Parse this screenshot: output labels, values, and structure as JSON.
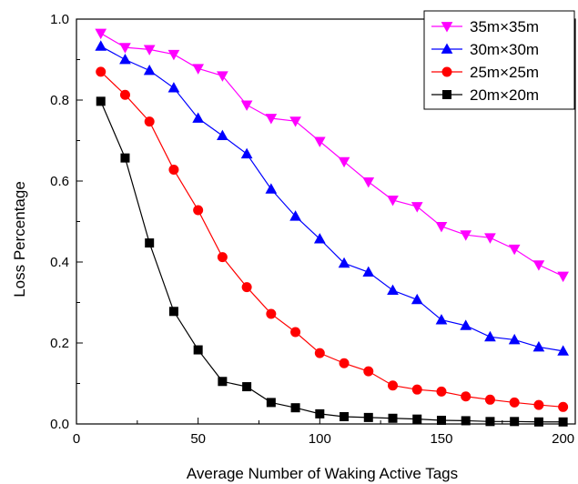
{
  "chart_data": {
    "type": "line",
    "title": "",
    "xlabel": "Average Number of Waking Active Tags",
    "ylabel": "Loss Percentage",
    "xlim": [
      0,
      205
    ],
    "ylim": [
      0,
      1.0
    ],
    "xticks": [
      0,
      50,
      100,
      150,
      200
    ],
    "yticks": [
      0.0,
      0.2,
      0.4,
      0.6,
      0.8,
      1.0
    ],
    "ytick_labels": [
      "0.0",
      "0.2",
      "0.4",
      "0.6",
      "0.8",
      "1.0"
    ],
    "grid": false,
    "legend_position": "top-right",
    "x": [
      10,
      20,
      30,
      40,
      50,
      60,
      70,
      80,
      90,
      100,
      110,
      120,
      130,
      140,
      150,
      160,
      170,
      180,
      190,
      200
    ],
    "series": [
      {
        "name": "35m×35m",
        "color": "#ff00ff",
        "marker": "triangle-down",
        "values": [
          0.965,
          0.93,
          0.925,
          0.913,
          0.878,
          0.86,
          0.788,
          0.755,
          0.748,
          0.698,
          0.648,
          0.598,
          0.553,
          0.537,
          0.488,
          0.467,
          0.46,
          0.432,
          0.393,
          0.365
        ]
      },
      {
        "name": "30m×30m",
        "color": "#0000ff",
        "marker": "triangle-up",
        "values": [
          0.933,
          0.9,
          0.873,
          0.83,
          0.755,
          0.712,
          0.667,
          0.58,
          0.513,
          0.457,
          0.397,
          0.375,
          0.33,
          0.307,
          0.257,
          0.243,
          0.215,
          0.208,
          0.19,
          0.18
        ]
      },
      {
        "name": "25m×25m",
        "color": "#ff0000",
        "marker": "circle",
        "values": [
          0.87,
          0.813,
          0.747,
          0.628,
          0.528,
          0.412,
          0.338,
          0.272,
          0.227,
          0.175,
          0.15,
          0.13,
          0.095,
          0.085,
          0.08,
          0.068,
          0.06,
          0.053,
          0.047,
          0.042
        ]
      },
      {
        "name": "20m×20m",
        "color": "#000000",
        "marker": "square",
        "values": [
          0.797,
          0.657,
          0.447,
          0.278,
          0.183,
          0.105,
          0.092,
          0.053,
          0.04,
          0.025,
          0.018,
          0.016,
          0.014,
          0.012,
          0.009,
          0.008,
          0.006,
          0.006,
          0.005,
          0.005
        ]
      }
    ]
  }
}
